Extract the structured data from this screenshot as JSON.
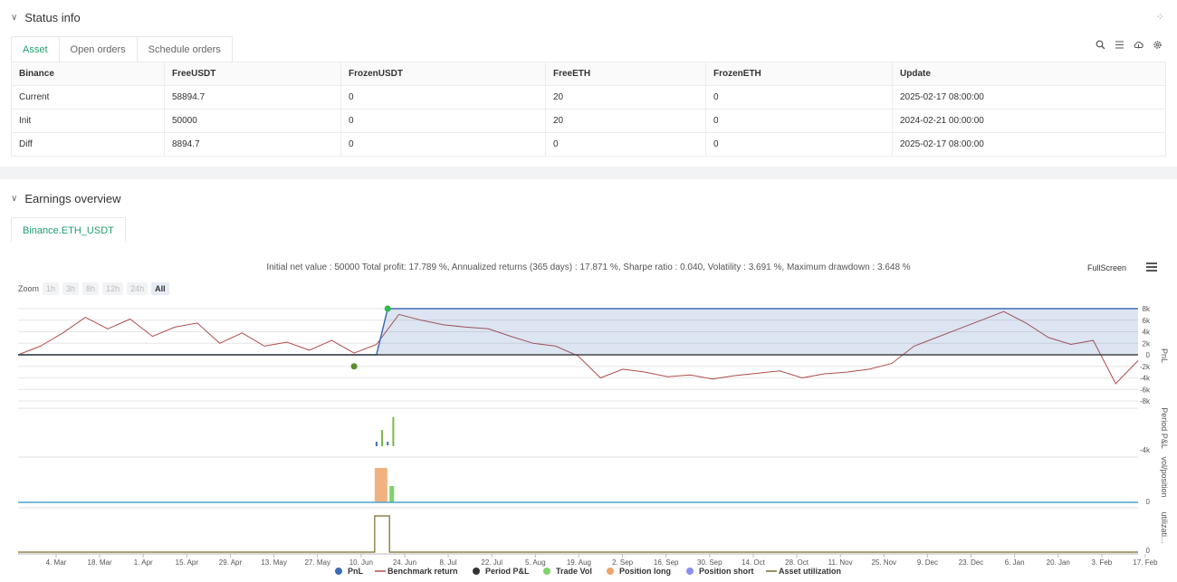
{
  "status": {
    "title": "Status info",
    "tabs": [
      "Asset",
      "Open orders",
      "Schedule orders"
    ],
    "columns": [
      "Binance",
      "FreeUSDT",
      "FrozenUSDT",
      "FreeETH",
      "FrozenETH",
      "Update"
    ],
    "rows": [
      {
        "label": "Current",
        "free_usdt": "58894.7",
        "frozen_usdt": "0",
        "free_eth": "20",
        "frozen_eth": "0",
        "update": "2025-02-17 08:00:00"
      },
      {
        "label": "Init",
        "free_usdt": "50000",
        "frozen_usdt": "0",
        "free_eth": "20",
        "frozen_eth": "0",
        "update": "2024-02-21 00:00:00"
      },
      {
        "label": "Diff",
        "free_usdt": "8894.7",
        "frozen_usdt": "0",
        "free_eth": "0",
        "frozen_eth": "0",
        "update": "2025-02-17 08:00:00"
      }
    ],
    "tool_icons": [
      "search-icon",
      "list-icon",
      "cloud-icon",
      "gear-icon"
    ]
  },
  "earnings": {
    "title": "Earnings overview",
    "tab": "Binance.ETH_USDT",
    "summary": "Initial net value : 50000 Total profit: 17.789 %, Annualized returns (365 days) : 17.871 %, Sharpe ratio : 0.040, Volatility : 3.691 %, Maximum drawdown : 3.648 %",
    "fullscreen": "FullScreen",
    "zoom_label": "Zoom",
    "zoom_options": [
      "1h",
      "3h",
      "8h",
      "12h",
      "24h",
      "All"
    ]
  },
  "colors": {
    "accent": "#1e9f6d",
    "pnl": "#3d6db3",
    "benchmark": "#b24c4c",
    "period_pnl": "#333333",
    "trade_vol": "#7ed36b",
    "position_long": "#f0a46a",
    "position_short": "#8a8ff0",
    "utilization": "#7a6a2a"
  },
  "chart_data": {
    "type": "line",
    "x_ticks": [
      "4. Mar",
      "18. Mar",
      "1. Apr",
      "15. Apr",
      "29. Apr",
      "13. May",
      "27. May",
      "10. Jun",
      "24. Jun",
      "8. Jul",
      "22. Jul",
      "5. Aug",
      "19. Aug",
      "2. Sep",
      "16. Sep",
      "30. Sep",
      "14. Oct",
      "28. Oct",
      "11. Nov",
      "25. Nov",
      "9. Dec",
      "23. Dec",
      "6. Jan",
      "20. Jan",
      "3. Feb",
      "17. Feb"
    ],
    "pnl_axis": {
      "label": "PnL",
      "ticks": [
        "8k",
        "6k",
        "4k",
        "2k",
        "0",
        "-2k",
        "-4k",
        "-6k",
        "-8k"
      ],
      "ylim": [
        -8000,
        8000
      ]
    },
    "period_axis": {
      "label": "Period P&L",
      "ticks": [
        "-4k"
      ]
    },
    "vol_axis": {
      "label": "vol/position",
      "ticks": [
        "0"
      ]
    },
    "util_axis": {
      "label": "utilizati...",
      "ticks": [
        "0"
      ]
    },
    "legend": [
      "PnL",
      "Benchmark return",
      "Period P&L",
      "Trade Vol",
      "Position long",
      "Position short",
      "Asset utilization"
    ],
    "series": [
      {
        "name": "PnL",
        "x": [
          0,
          0.32,
          0.33,
          0.4,
          0.5,
          0.6,
          0.7,
          0.8,
          0.9,
          1.0
        ],
        "values": [
          0,
          0,
          8000,
          8000,
          8000,
          8000,
          8000,
          8000,
          8000,
          8000
        ]
      },
      {
        "name": "Benchmark return",
        "x": [
          0,
          0.02,
          0.04,
          0.06,
          0.08,
          0.1,
          0.12,
          0.14,
          0.16,
          0.18,
          0.2,
          0.22,
          0.24,
          0.26,
          0.28,
          0.3,
          0.32,
          0.34,
          0.36,
          0.38,
          0.4,
          0.42,
          0.44,
          0.46,
          0.48,
          0.5,
          0.52,
          0.54,
          0.56,
          0.58,
          0.6,
          0.62,
          0.64,
          0.66,
          0.68,
          0.7,
          0.72,
          0.74,
          0.76,
          0.78,
          0.8,
          0.82,
          0.84,
          0.86,
          0.88,
          0.9,
          0.92,
          0.94,
          0.96,
          0.98,
          1.0
        ],
        "values": [
          0,
          1500,
          3800,
          6500,
          4500,
          6200,
          3200,
          4800,
          5500,
          2000,
          3800,
          1500,
          2200,
          800,
          2500,
          300,
          1800,
          7000,
          6000,
          5200,
          4800,
          4500,
          3200,
          2000,
          1500,
          -200,
          -4000,
          -2500,
          -3000,
          -3800,
          -3500,
          -4200,
          -3600,
          -3200,
          -2800,
          -4000,
          -3300,
          -3000,
          -2500,
          -1500,
          1500,
          3000,
          4500,
          6000,
          7500,
          5500,
          3000,
          1800,
          2500,
          -5000,
          -1000
        ]
      },
      {
        "name": "Period P&L",
        "x": [
          0.32,
          0.325,
          0.33
        ],
        "values": [
          -1500,
          -800,
          -1200
        ]
      },
      {
        "name": "Trade Vol",
        "x": [
          0.325,
          0.335
        ],
        "values": [
          2500,
          4500
        ]
      },
      {
        "name": "Position long",
        "x": [
          0.32,
          0.33
        ],
        "values": [
          1,
          0.5
        ]
      },
      {
        "name": "Asset utilization",
        "x": [
          0.32,
          0.33
        ],
        "values": [
          1,
          1
        ]
      }
    ],
    "markers": [
      {
        "label": "buy",
        "x": 0.33,
        "y": 8000
      },
      {
        "label": "sell",
        "x": 0.3,
        "y": -2000
      }
    ],
    "grid": true,
    "legend_placement": "bottom"
  }
}
